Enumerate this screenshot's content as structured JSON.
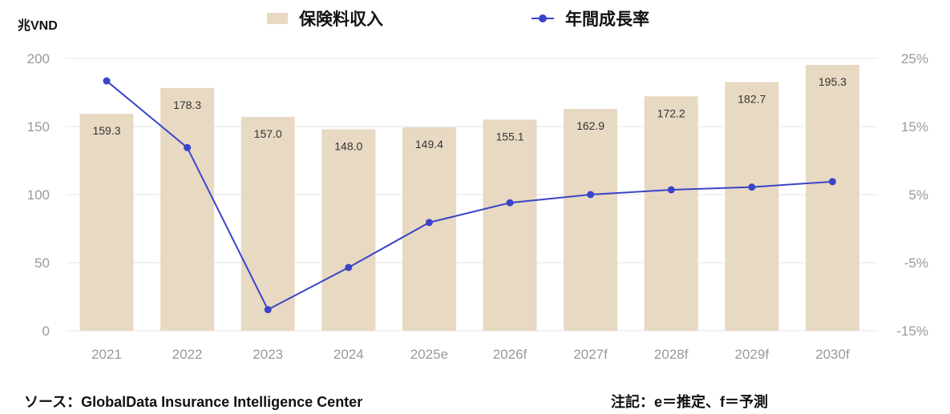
{
  "chart_data": {
    "type": "bar+line",
    "categories": [
      "2021",
      "2022",
      "2023",
      "2024",
      "2025e",
      "2026f",
      "2027f",
      "2028f",
      "2029f",
      "2030f"
    ],
    "series": [
      {
        "name": "保険料収入",
        "type": "bar",
        "axis": "left",
        "color": "#e8d9c3",
        "values": [
          159.3,
          178.3,
          157.0,
          148.0,
          149.4,
          155.1,
          162.9,
          172.2,
          182.7,
          195.3
        ],
        "labels": [
          "159.3",
          "178.3",
          "157.0",
          "148.0",
          "149.4",
          "155.1",
          "162.9",
          "172.2",
          "182.7",
          "195.3"
        ]
      },
      {
        "name": "年間成長率",
        "type": "line",
        "axis": "right",
        "color": "#3a44c8",
        "values": [
          21.7,
          11.9,
          -11.9,
          -5.7,
          0.9,
          3.8,
          5.0,
          5.7,
          6.1,
          6.9
        ]
      }
    ],
    "ylabel_left": "兆VND",
    "ylim_left": [
      0,
      200
    ],
    "yticks_left": [
      "0",
      "50",
      "100",
      "150",
      "200"
    ],
    "ylim_right": [
      -15,
      25
    ],
    "yticks_right": [
      "-15%",
      "-5%",
      "5%",
      "15%",
      "25%"
    ],
    "grid": true,
    "legend_position": "top"
  },
  "footer": {
    "source": "ソース：GlobalData Insurance Intelligence Center",
    "note": "注記：e＝推定、f＝予測"
  }
}
